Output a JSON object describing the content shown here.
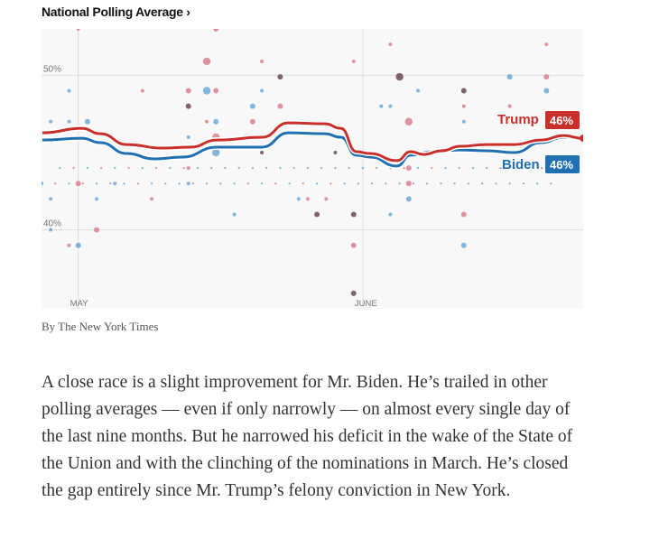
{
  "title": "National Polling Average ›",
  "credit": "By The New York Times",
  "body_text": "A close race is a slight improvement for Mr. Biden. He’s trailed in other polling averages — even if only narrowly — on almost every single day of the last nine months. But he narrowed his deficit in the wake of the State of the Union and with the clinching of the nominations in March. He’s closed the gap entirely since Mr. Trump’s felony conviction in New York.",
  "colors": {
    "trump": "#c9302c",
    "biden": "#1f6fb2",
    "trump_dot": "#d9838f",
    "biden_dot": "#6fa8d6",
    "dark_dot": "#6b4a55",
    "bg": "#f8f8f8"
  },
  "chart_data": {
    "type": "line",
    "xlabel": "",
    "ylabel": "",
    "x_unit": "days since May 1",
    "xlim": [
      -4,
      55
    ],
    "ylim": [
      34.9,
      53
    ],
    "y_ticks": [
      {
        "value": 50,
        "label": "50%"
      },
      {
        "value": 40,
        "label": "40%"
      }
    ],
    "x_ticks": [
      {
        "value": 0,
        "label": "MAY"
      },
      {
        "value": 31,
        "label": "JUNE"
      }
    ],
    "series": [
      {
        "name": "Trump",
        "label": "Trump",
        "value_label": "46%",
        "color": "#c9302c",
        "x": [
          -3.9,
          0.4,
          2.4,
          5.3,
          9.2,
          12.2,
          15.1,
          20,
          22.9,
          26.9,
          28.6,
          30.3,
          31.8,
          34.7,
          36.2,
          37.6,
          39.6,
          41.6,
          44.5,
          47.5,
          50.4,
          52.9,
          54.9
        ],
        "y": [
          46.28,
          46.57,
          46.22,
          45.52,
          45.29,
          45.35,
          45.81,
          45.99,
          46.92,
          46.86,
          46.57,
          45.06,
          44.94,
          44.48,
          45.06,
          44.88,
          45.12,
          45.41,
          45.52,
          45.52,
          45.81,
          46.1,
          45.93
        ]
      },
      {
        "name": "Biden",
        "label": "Biden",
        "value_label": "46%",
        "color": "#1f6fb2",
        "x": [
          -3.9,
          0.4,
          2.4,
          5.3,
          8.3,
          11.3,
          15.1,
          20,
          22.9,
          26.9,
          28.6,
          30.3,
          31.8,
          34.7,
          36.2,
          38.6,
          41.6,
          44.5,
          47.5,
          50.4,
          52.9,
          54.9
        ],
        "y": [
          45.81,
          45.93,
          45.64,
          44.94,
          44.59,
          44.71,
          45.35,
          45.35,
          46.28,
          46.22,
          45.99,
          44.83,
          44.71,
          44.13,
          44.83,
          45.06,
          45.17,
          45.12,
          45,
          45.64,
          45.99,
          45.93
        ]
      }
    ],
    "polls": [
      [
        0,
        53,
        "t",
        1
      ],
      [
        15,
        53,
        "t",
        2
      ],
      [
        14,
        50.9,
        "t",
        3
      ],
      [
        20,
        50.9,
        "t",
        1
      ],
      [
        22,
        49.9,
        "d",
        2
      ],
      [
        -1,
        49,
        "b",
        1
      ],
      [
        7,
        49,
        "t",
        1
      ],
      [
        12,
        49,
        "t",
        2
      ],
      [
        14,
        49,
        "b",
        3
      ],
      [
        15,
        49,
        "t",
        2
      ],
      [
        20,
        49,
        "b",
        1
      ],
      [
        12,
        48,
        "d",
        2
      ],
      [
        19,
        48,
        "b",
        2
      ],
      [
        22,
        48,
        "t",
        2
      ],
      [
        -3,
        47,
        "b",
        1
      ],
      [
        -1,
        47,
        "b",
        1
      ],
      [
        1,
        47,
        "b",
        2
      ],
      [
        14,
        47,
        "t",
        1
      ],
      [
        15,
        47,
        "b",
        2
      ],
      [
        19,
        47,
        "t",
        2
      ],
      [
        15,
        46,
        "t",
        3
      ],
      [
        12,
        46,
        "b",
        1
      ],
      [
        15,
        45,
        "b",
        3
      ],
      [
        20,
        45,
        "d",
        1
      ],
      [
        28,
        45,
        "d",
        1
      ],
      [
        30,
        50.9,
        "t",
        1
      ],
      [
        34,
        52,
        "t",
        1
      ],
      [
        35,
        49.9,
        "d",
        3
      ],
      [
        37,
        49,
        "b",
        1
      ],
      [
        42,
        49,
        "d",
        2
      ],
      [
        47,
        49.9,
        "b",
        2
      ],
      [
        51,
        49.9,
        "t",
        2
      ],
      [
        51,
        49,
        "b",
        2
      ],
      [
        51,
        52,
        "t",
        1
      ],
      [
        33,
        48,
        "b",
        1
      ],
      [
        34,
        48,
        "b",
        1
      ],
      [
        36,
        47,
        "t",
        3
      ],
      [
        42,
        48,
        "t",
        1
      ],
      [
        42,
        47,
        "b",
        1
      ],
      [
        47,
        48,
        "t",
        1
      ],
      [
        36,
        45,
        "b",
        2
      ],
      [
        36,
        44,
        "t",
        2
      ],
      [
        36,
        43,
        "t",
        2
      ],
      [
        36,
        42,
        "b",
        2
      ],
      [
        24,
        42,
        "b",
        1
      ],
      [
        25,
        42,
        "t",
        1
      ],
      [
        27,
        42,
        "t",
        1
      ],
      [
        26,
        41,
        "d",
        2
      ],
      [
        30,
        41,
        "d",
        2
      ],
      [
        34,
        41,
        "b",
        1
      ],
      [
        42,
        41,
        "t",
        2
      ],
      [
        30,
        39,
        "t",
        2
      ],
      [
        42,
        39,
        "b",
        2
      ],
      [
        30,
        35.9,
        "d",
        2
      ],
      [
        -3,
        42,
        "b",
        1
      ],
      [
        -3,
        40,
        "b",
        1
      ],
      [
        -1,
        39,
        "t",
        1
      ],
      [
        0,
        39,
        "b",
        2
      ],
      [
        2,
        40,
        "t",
        2
      ],
      [
        0,
        43,
        "t",
        2
      ],
      [
        2,
        42,
        "b",
        1
      ],
      [
        8,
        42,
        "t",
        1
      ],
      [
        12,
        44,
        "t",
        1
      ],
      [
        12,
        43,
        "b",
        1
      ],
      [
        4,
        43,
        "b",
        1
      ],
      [
        -4,
        43,
        "b",
        1
      ],
      [
        17,
        41,
        "b",
        1
      ]
    ],
    "small_poll_rows": [
      {
        "pct": 44,
        "from": -2,
        "to": 52
      },
      {
        "pct": 43,
        "from": -4,
        "to": 52
      }
    ]
  }
}
